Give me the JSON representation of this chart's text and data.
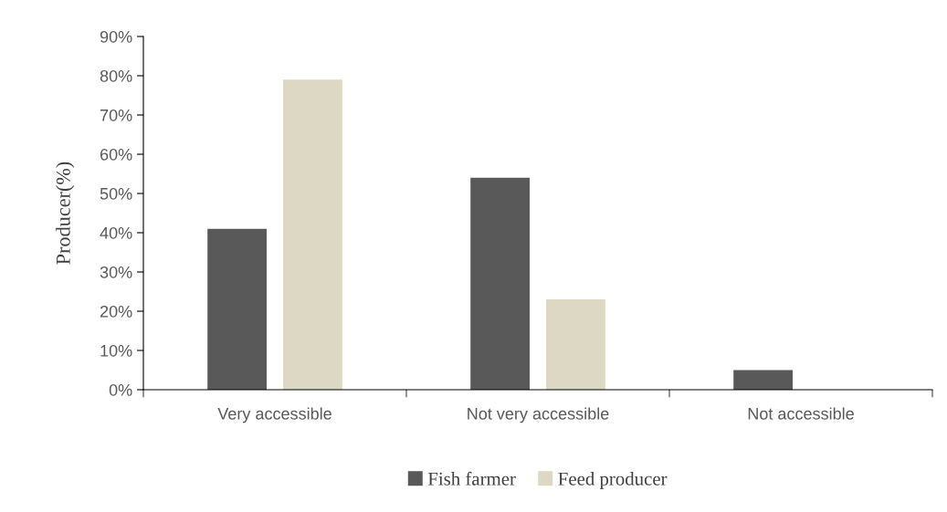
{
  "chart_data": {
    "type": "bar",
    "ylabel": "Producer(%)",
    "categories": [
      "Very accessible",
      "Not very accessible",
      "Not accessible"
    ],
    "series": [
      {
        "name": "Fish farmer",
        "color": "#595959",
        "values": [
          41,
          54,
          5
        ]
      },
      {
        "name": "Feed producer",
        "color": "#ddd8c4",
        "values": [
          79,
          23,
          0
        ]
      }
    ],
    "ylim": [
      0,
      90
    ],
    "yticks": [
      {
        "value": 0,
        "label": "0%"
      },
      {
        "value": 10,
        "label": "10%"
      },
      {
        "value": 20,
        "label": "20%"
      },
      {
        "value": 30,
        "label": "30%"
      },
      {
        "value": 40,
        "label": "40%"
      },
      {
        "value": 50,
        "label": "50%"
      },
      {
        "value": 60,
        "label": "60%"
      },
      {
        "value": 70,
        "label": "70%"
      },
      {
        "value": 80,
        "label": "80%"
      },
      {
        "value": 90,
        "label": "90%"
      }
    ],
    "grid": false,
    "legend": "bottom"
  }
}
